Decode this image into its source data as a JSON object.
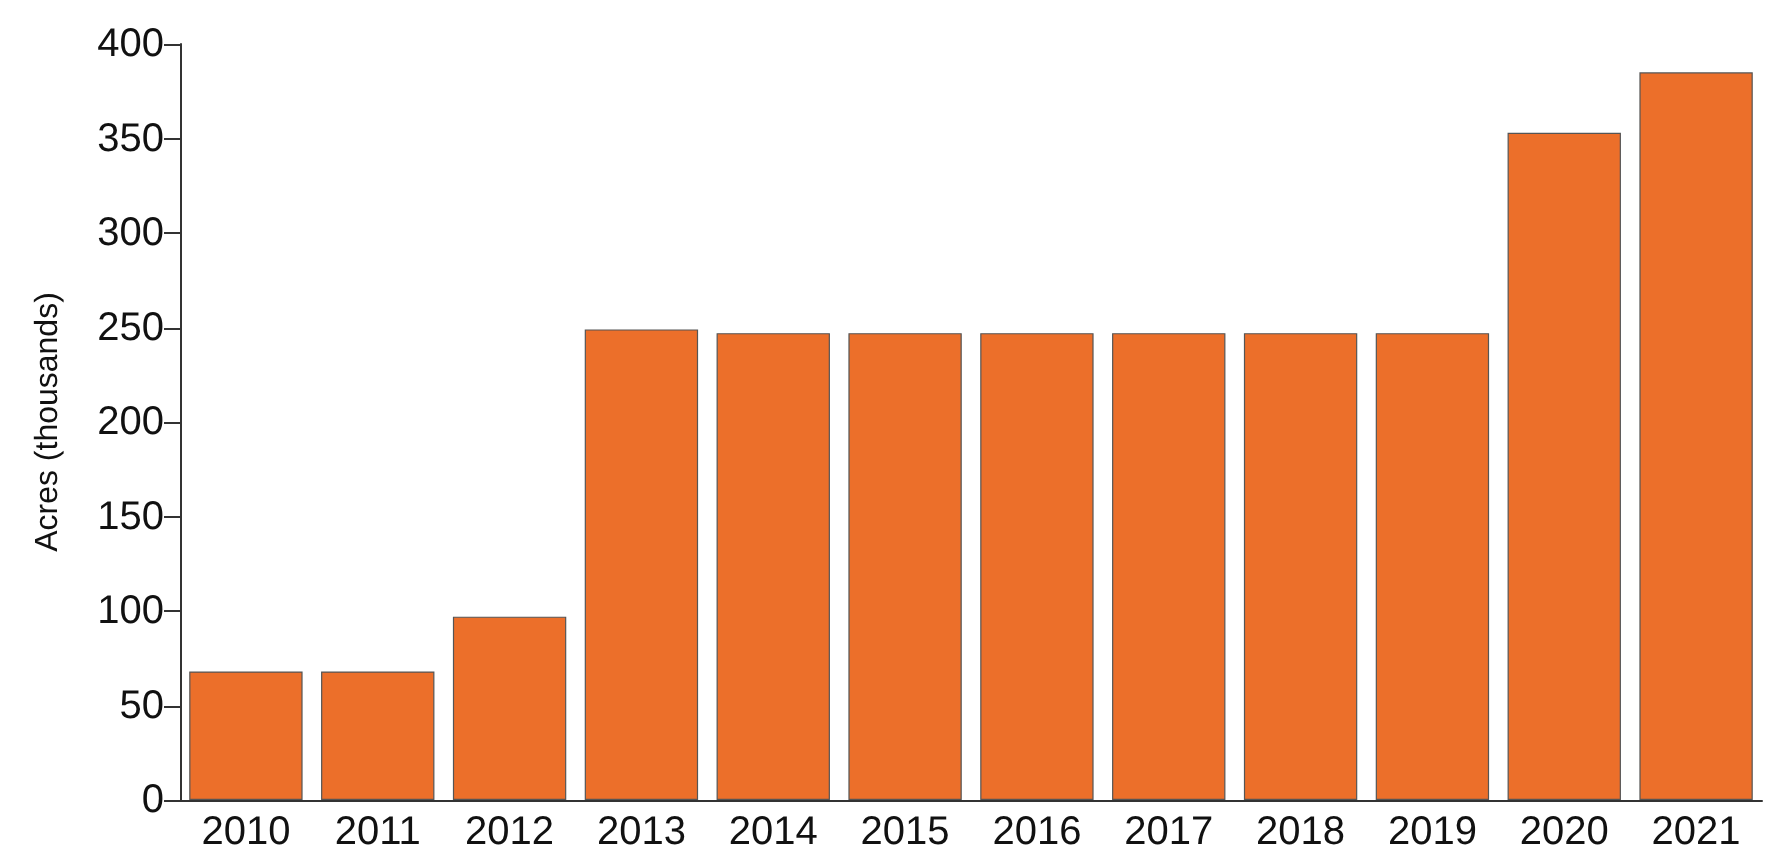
{
  "chart_data": {
    "type": "bar",
    "ylabel": "Acres (thousands)",
    "categories": [
      "2010",
      "2011",
      "2012",
      "2013",
      "2014",
      "2015",
      "2016",
      "2017",
      "2018",
      "2019",
      "2020",
      "2021"
    ],
    "values": [
      68,
      68,
      97,
      249,
      247,
      247,
      247,
      247,
      247,
      247,
      353,
      385
    ],
    "color": "#ec6f2a",
    "ylim": [
      0,
      400
    ],
    "yticks": [
      0,
      50,
      100,
      150,
      200,
      250,
      300,
      350,
      400
    ],
    "grid": false
  }
}
